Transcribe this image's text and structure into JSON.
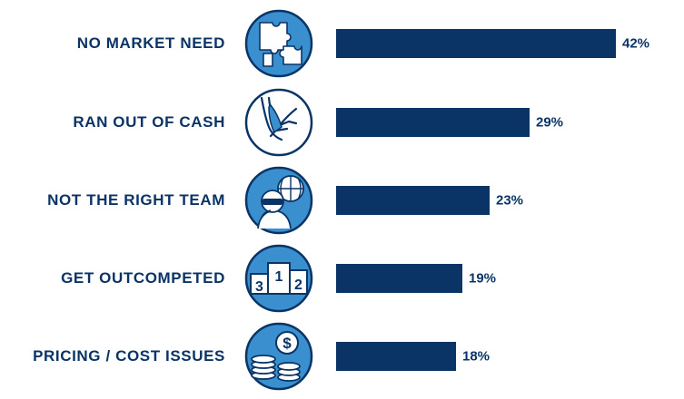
{
  "colors": {
    "bar": "#0b3466",
    "icon_fill": "#3a8fce",
    "icon_stroke": "#0b3466"
  },
  "chart_data": {
    "type": "bar",
    "orientation": "horizontal",
    "categories": [
      "NO MARKET NEED",
      "RAN OUT OF CASH",
      "NOT THE RIGHT TEAM",
      "GET OUTCOMPETED",
      "PRICING / COST ISSUES"
    ],
    "values": [
      42,
      29,
      23,
      19,
      18
    ],
    "value_labels": [
      "42%",
      "29%",
      "23%",
      "19%",
      "18%"
    ],
    "icons": [
      "puzzle-icon",
      "handshake-icon",
      "team-icon",
      "podium-icon",
      "coins-icon"
    ],
    "podium_numbers": [
      "3",
      "1",
      "2"
    ],
    "coin_symbol": "$",
    "xlim": [
      0,
      42
    ],
    "grid": false
  }
}
